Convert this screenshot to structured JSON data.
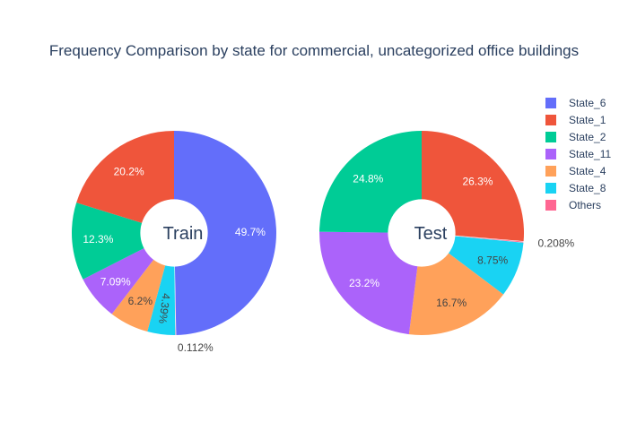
{
  "chart_data": [
    {
      "type": "pie",
      "hole_label": "Train",
      "slices": [
        {
          "name": "State_6",
          "value": 49.7,
          "label": "49.7%"
        },
        {
          "name": "Others",
          "value": 0.112,
          "label": "0.112%"
        },
        {
          "name": "State_8",
          "value": 4.39,
          "label": "4.39%"
        },
        {
          "name": "State_4",
          "value": 6.2,
          "label": "6.2%"
        },
        {
          "name": "State_11",
          "value": 7.09,
          "label": "7.09%"
        },
        {
          "name": "State_2",
          "value": 12.3,
          "label": "12.3%"
        },
        {
          "name": "State_1",
          "value": 20.2,
          "label": "20.2%"
        }
      ]
    },
    {
      "type": "pie",
      "hole_label": "Test",
      "slices": [
        {
          "name": "State_1",
          "value": 26.3,
          "label": "26.3%"
        },
        {
          "name": "Others",
          "value": 0.208,
          "label": "0.208%"
        },
        {
          "name": "State_8",
          "value": 8.75,
          "label": "8.75%"
        },
        {
          "name": "State_4",
          "value": 16.7,
          "label": "16.7%"
        },
        {
          "name": "State_11",
          "value": 23.2,
          "label": "23.2%"
        },
        {
          "name": "State_2",
          "value": 24.8,
          "label": "24.8%"
        }
      ]
    }
  ],
  "title": "Frequency Comparison by state for commercial, uncategorized office buildings",
  "legend": {
    "placement": "top-right",
    "items": [
      "State_6",
      "State_1",
      "State_2",
      "State_11",
      "State_4",
      "State_8",
      "Others"
    ]
  },
  "colors": {
    "State_6": "#636efa",
    "State_1": "#ef553b",
    "State_2": "#00cc96",
    "State_11": "#ab63fa",
    "State_4": "#ffa15a",
    "State_8": "#19d3f3",
    "Others": "#ff6692"
  }
}
